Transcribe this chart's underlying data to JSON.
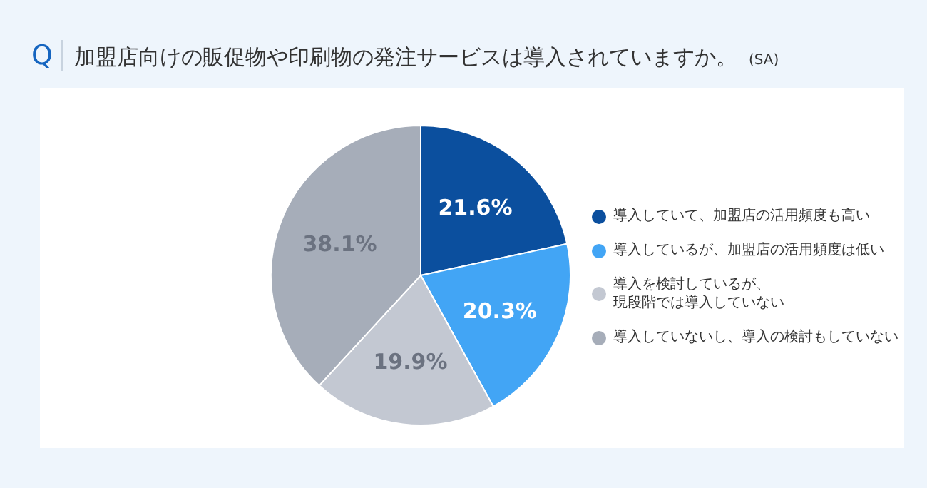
{
  "chart_data": {
    "type": "pie",
    "title": "加盟店向けの販促物や印刷物の発注サービスは導入されていますか。",
    "subtitle": "(SA)",
    "annotations": [
      "Q"
    ],
    "categories": [
      "導入していて、加盟店の活用頻度も高い",
      "導入しているが、加盟店の活用頻度は低い",
      "導入を検討しているが、現段階では導入していない",
      "導入していないし、導入の検討もしていない"
    ],
    "values": [
      21.6,
      20.3,
      19.9,
      38.1
    ],
    "colors": [
      "#0b4f9e",
      "#42a5f5",
      "#c3c8d2",
      "#a6adb9"
    ],
    "value_labels": [
      "21.6%",
      "20.3%",
      "19.9%",
      "38.1%"
    ],
    "legend": "right"
  }
}
